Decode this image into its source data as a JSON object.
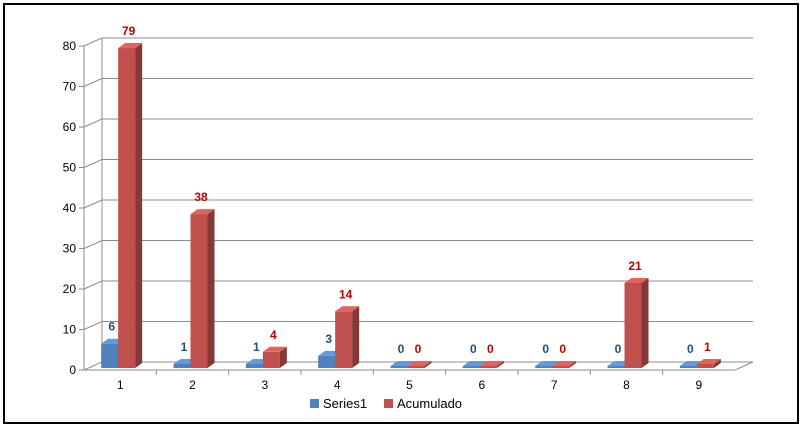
{
  "chart_data": {
    "type": "bar",
    "style": "3d-clustered-column",
    "categories": [
      "1",
      "2",
      "3",
      "4",
      "5",
      "6",
      "7",
      "8",
      "9"
    ],
    "series": [
      {
        "name": "Series1",
        "values": [
          6,
          1,
          1,
          3,
          0,
          0,
          0,
          0,
          0
        ],
        "color": "#4F81BD",
        "label_color": "#1F4E79"
      },
      {
        "name": "Acumulado",
        "values": [
          79,
          38,
          4,
          14,
          0,
          0,
          0,
          21,
          1
        ],
        "color": "#C0504D",
        "label_color": "#C00000"
      }
    ],
    "ylim": [
      0,
      80
    ],
    "yticks": [
      0,
      10,
      20,
      30,
      40,
      50,
      60,
      70,
      80
    ],
    "grid": true,
    "legend_position": "bottom",
    "data_labels": true,
    "xlabel": "",
    "ylabel": "",
    "title": ""
  }
}
